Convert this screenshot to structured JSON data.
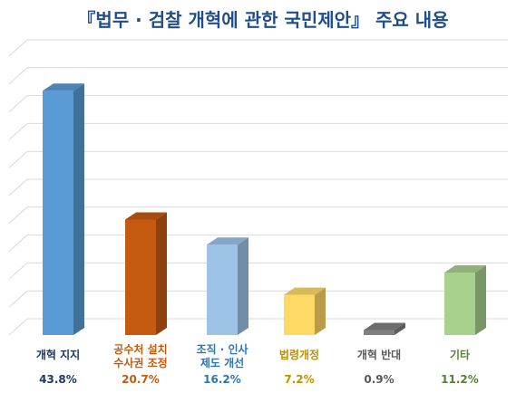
{
  "title": "『법무 · 검찰 개혁에 관한 국민제안』 주요 내용",
  "chart_data": {
    "type": "bar",
    "title": "『법무 · 검찰 개혁에 관한 국민제안』 주요 내용",
    "categories": [
      "개혁 지지",
      "공수처 설치\n수사권 조정",
      "조직 · 인사\n제도 개선",
      "법령개정",
      "개혁 반대",
      "기타"
    ],
    "values": [
      43.8,
      20.7,
      16.2,
      7.2,
      0.9,
      11.2
    ],
    "value_labels": [
      "43.8%",
      "20.7%",
      "16.2%",
      "7.2%",
      "0.9%",
      "11.2%"
    ],
    "ylim": [
      0,
      50
    ],
    "grid": true,
    "legend": "none",
    "bar_colors": [
      "#5b9bd5",
      "#c55a11",
      "#9dc3e6",
      "#ffd966",
      "#7f7f7f",
      "#a9d18e"
    ],
    "label_colors": [
      "#1f3864",
      "#c55a11",
      "#2e75b6",
      "#bf9000",
      "#595959",
      "#548235"
    ]
  }
}
